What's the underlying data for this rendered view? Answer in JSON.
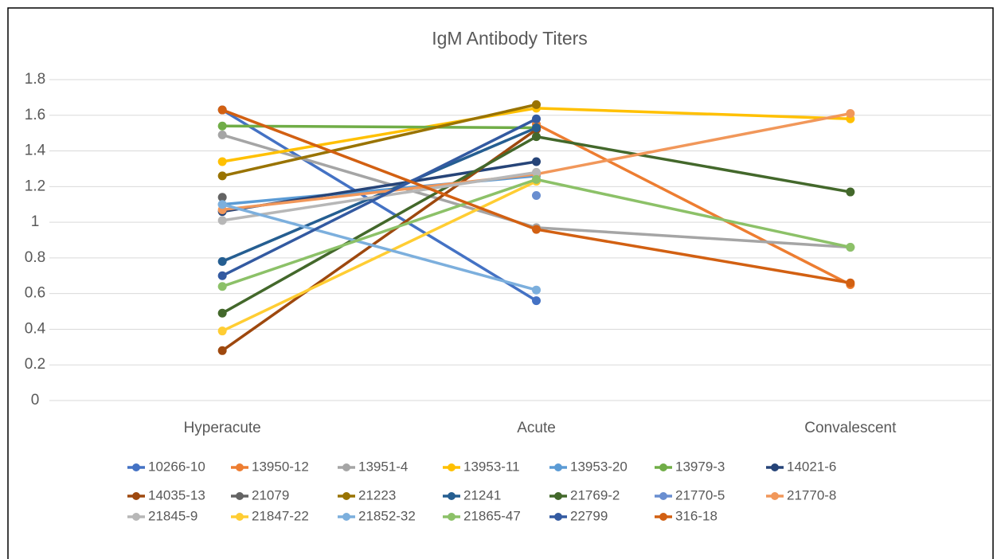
{
  "chart_data": {
    "type": "line",
    "title": "IgM Antibody Titers",
    "categories": [
      "Hyperacute",
      "Acute",
      "Convalescent"
    ],
    "ylim": [
      0,
      1.8
    ],
    "yticks": [
      0,
      0.2,
      0.4,
      0.6,
      0.8,
      1,
      1.2,
      1.4,
      1.6,
      1.8
    ],
    "grid": true,
    "legend": "bottom",
    "series": [
      {
        "name": "10266-10",
        "color": "#4472c4",
        "values": [
          1.63,
          0.56,
          null
        ]
      },
      {
        "name": "13950-12",
        "color": "#ed7d31",
        "values": [
          null,
          1.55,
          0.65
        ]
      },
      {
        "name": "13951-4",
        "color": "#a5a5a5",
        "values": [
          1.49,
          0.97,
          0.86
        ]
      },
      {
        "name": "13953-11",
        "color": "#ffc000",
        "values": [
          1.34,
          1.64,
          1.58
        ]
      },
      {
        "name": "13953-20",
        "color": "#5b9bd5",
        "values": [
          1.1,
          1.26,
          null
        ]
      },
      {
        "name": "13979-3",
        "color": "#70ad47",
        "values": [
          1.54,
          1.53,
          null
        ]
      },
      {
        "name": "14021-6",
        "color": "#264478",
        "values": [
          1.06,
          1.34,
          null
        ]
      },
      {
        "name": "14035-13",
        "color": "#9e480e",
        "values": [
          0.28,
          1.52,
          null
        ]
      },
      {
        "name": "21079",
        "color": "#636363",
        "values": [
          1.14,
          null,
          null
        ]
      },
      {
        "name": "21223",
        "color": "#997300",
        "values": [
          1.26,
          1.66,
          null
        ]
      },
      {
        "name": "21241",
        "color": "#255e91",
        "values": [
          0.78,
          1.53,
          null
        ]
      },
      {
        "name": "21769-2",
        "color": "#43682b",
        "values": [
          0.49,
          1.48,
          1.17
        ]
      },
      {
        "name": "21770-5",
        "color": "#698ed0",
        "values": [
          null,
          1.15,
          null
        ]
      },
      {
        "name": "21770-8",
        "color": "#f1975a",
        "values": [
          1.07,
          1.27,
          1.61
        ]
      },
      {
        "name": "21845-9",
        "color": "#b7b7b7",
        "values": [
          1.01,
          1.28,
          null
        ]
      },
      {
        "name": "21847-22",
        "color": "#ffcd33",
        "values": [
          0.39,
          1.23,
          null
        ]
      },
      {
        "name": "21852-32",
        "color": "#7cafdd",
        "values": [
          1.1,
          0.62,
          null
        ]
      },
      {
        "name": "21865-47",
        "color": "#8cc168",
        "values": [
          0.64,
          1.24,
          0.86
        ]
      },
      {
        "name": "22799",
        "color": "#335aa1",
        "values": [
          0.7,
          1.58,
          null
        ]
      },
      {
        "name": "316-18",
        "color": "#d26012",
        "values": [
          1.63,
          0.96,
          0.66
        ]
      }
    ]
  }
}
